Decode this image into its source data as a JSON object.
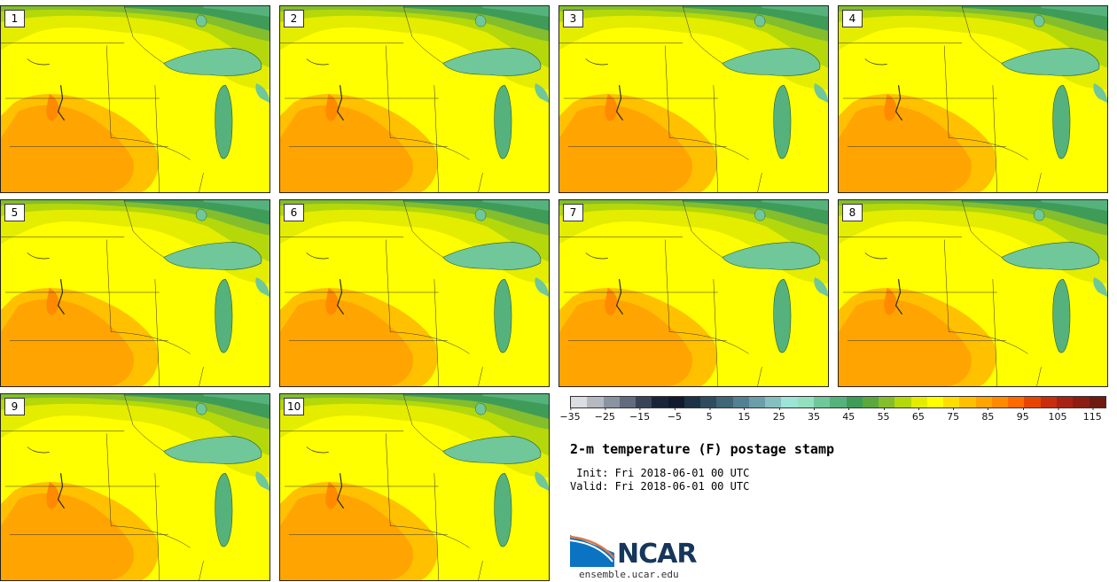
{
  "panels": [
    "1",
    "2",
    "3",
    "4",
    "5",
    "6",
    "7",
    "8",
    "9",
    "10"
  ],
  "colorbar": {
    "colors": [
      "#dcdde2",
      "#b6b9c1",
      "#8b93a1",
      "#626c7e",
      "#3a4458",
      "#1a2438",
      "#101a2c",
      "#1d3244",
      "#2e4c5e",
      "#3f6577",
      "#538093",
      "#6b9ea8",
      "#86bfc0",
      "#9de3d6",
      "#93e0c1",
      "#6fc79a",
      "#56b27c",
      "#3f9c58",
      "#5aa83e",
      "#84be2c",
      "#b4d80a",
      "#e4ec00",
      "#ffff00",
      "#ffdd00",
      "#ffc000",
      "#ffa400",
      "#ff8a00",
      "#ff6a00",
      "#e84500",
      "#c82d0e",
      "#a82214",
      "#8c1c14",
      "#6e1a10"
    ],
    "ticks": [
      "−35",
      "−25",
      "−15",
      "−5",
      "5",
      "15",
      "25",
      "35",
      "45",
      "55",
      "65",
      "75",
      "85",
      "95",
      "105",
      "115"
    ]
  },
  "title": "2-m temperature (F) postage stamp",
  "init": " Init: Fri 2018-06-01 00 UTC",
  "valid": "Valid: Fri 2018-06-01 00 UTC",
  "logo": {
    "text": "NCAR",
    "site": "ensemble.ucar.edu"
  }
}
